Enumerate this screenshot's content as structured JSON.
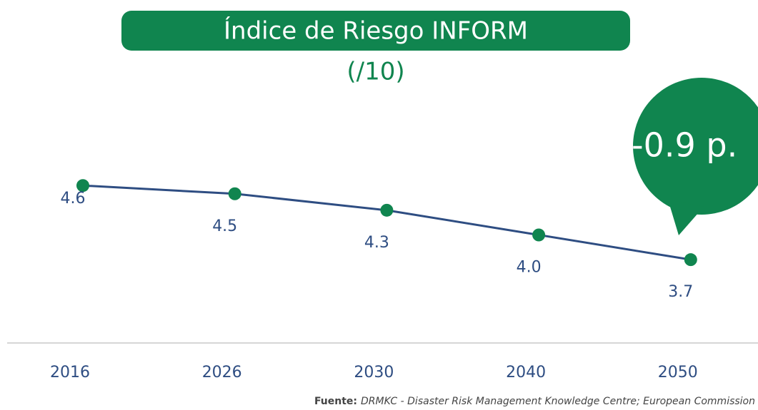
{
  "chart_data": {
    "type": "line",
    "title": "Índice de Riesgo INFORM",
    "subtitle": "(/10)",
    "annotation": "-0.9 p.",
    "source_label": "Fuente:",
    "source": "DRMKC - Disaster Risk Management Knowledge Centre; European Commission",
    "categories": [
      "2016",
      "2026",
      "2030",
      "2040",
      "2050"
    ],
    "series": [
      {
        "name": "Índice de Riesgo INFORM",
        "color": "#2e4d82",
        "marker_color": "#10854f",
        "values": [
          4.6,
          4.5,
          4.3,
          4.0,
          3.7
        ],
        "value_labels": [
          "4.6",
          "4.5",
          "4.3",
          "4.0",
          "3.7"
        ]
      }
    ],
    "ylim": [
      3,
      5
    ]
  }
}
